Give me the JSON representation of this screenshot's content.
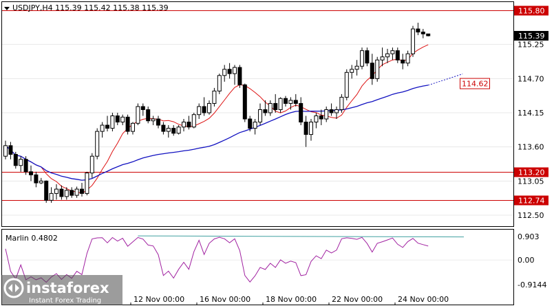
{
  "header": {
    "symbol_text": "USDJPY,H4  115.39 115.42 115.38 115.39"
  },
  "indicator": {
    "label": "Marlin 0.4802",
    "ticks": [
      "0.903",
      "0.00",
      "-0.9144"
    ]
  },
  "logo": {
    "brand": "instaforex",
    "tagline": "Instant Forex Trading"
  },
  "colors": {
    "bull_candle": "#ffffff",
    "bear_candle": "#000000",
    "level_line": "#cc0000",
    "ma_fast": "#dd1111",
    "ma_slow": "#1010c0",
    "marlin_line": "#a020a0",
    "marlin_signal": "#40a0a0"
  },
  "chart_data": {
    "type": "candlestick",
    "symbol": "USDJPY",
    "timeframe": "H4",
    "price_ticks": [
      "115.80",
      "115.25",
      "114.70",
      "114.15",
      "113.60",
      "113.05",
      "112.50"
    ],
    "price_range": [
      112.3,
      116.0
    ],
    "x_labels": [
      "12 Nov 00:00",
      "16 Nov 00:00",
      "18 Nov 00:00",
      "22 Nov 00:00",
      "24 Nov 00:00"
    ],
    "levels": [
      {
        "label": "115.80",
        "value": 115.8
      },
      {
        "label": "113.20",
        "value": 113.2
      },
      {
        "label": "112.74",
        "value": 112.74
      }
    ],
    "current_price": {
      "label": "115.39",
      "value": 115.39
    },
    "forecast": {
      "label": "114.62",
      "value": 114.62
    },
    "candles": [
      [
        113.45,
        113.7,
        113.4,
        113.62
      ],
      [
        113.62,
        113.68,
        113.4,
        113.48
      ],
      [
        113.48,
        113.52,
        113.25,
        113.3
      ],
      [
        113.3,
        113.45,
        113.2,
        113.4
      ],
      [
        113.4,
        113.45,
        113.15,
        113.2
      ],
      [
        113.2,
        113.3,
        113.05,
        113.15
      ],
      [
        113.15,
        113.2,
        112.95,
        113.02
      ],
      [
        113.02,
        113.1,
        113.0,
        113.05
      ],
      [
        113.05,
        113.06,
        112.7,
        112.74
      ],
      [
        112.74,
        112.95,
        112.7,
        112.85
      ],
      [
        112.85,
        113.0,
        112.75,
        112.92
      ],
      [
        112.92,
        112.98,
        112.75,
        112.8
      ],
      [
        112.8,
        112.95,
        112.75,
        112.9
      ],
      [
        112.9,
        112.95,
        112.78,
        112.82
      ],
      [
        112.82,
        112.96,
        112.78,
        112.92
      ],
      [
        112.92,
        113.02,
        112.8,
        112.85
      ],
      [
        112.85,
        113.2,
        112.82,
        113.18
      ],
      [
        113.18,
        113.5,
        113.1,
        113.45
      ],
      [
        113.45,
        113.9,
        113.4,
        113.85
      ],
      [
        113.85,
        114.0,
        113.75,
        113.95
      ],
      [
        113.95,
        114.1,
        113.85,
        113.9
      ],
      [
        113.9,
        114.15,
        113.85,
        114.1
      ],
      [
        114.1,
        114.15,
        113.95,
        114.0
      ],
      [
        114.0,
        114.12,
        113.95,
        114.08
      ],
      [
        114.08,
        114.12,
        113.8,
        113.85
      ],
      [
        113.85,
        114.0,
        113.8,
        113.98
      ],
      [
        113.98,
        114.3,
        113.95,
        114.25
      ],
      [
        114.25,
        114.3,
        114.1,
        114.2
      ],
      [
        114.2,
        114.25,
        113.98,
        114.02
      ],
      [
        114.02,
        114.1,
        113.95,
        114.05
      ],
      [
        114.05,
        114.1,
        113.9,
        113.95
      ],
      [
        113.95,
        114.0,
        113.8,
        113.85
      ],
      [
        113.85,
        113.95,
        113.75,
        113.9
      ],
      [
        113.9,
        113.95,
        113.78,
        113.82
      ],
      [
        113.82,
        113.95,
        113.8,
        113.92
      ],
      [
        113.92,
        114.05,
        113.85,
        114.0
      ],
      [
        114.0,
        114.1,
        113.88,
        113.92
      ],
      [
        113.92,
        114.15,
        113.9,
        114.12
      ],
      [
        114.12,
        114.3,
        114.05,
        114.25
      ],
      [
        114.25,
        114.4,
        114.1,
        114.15
      ],
      [
        114.15,
        114.35,
        114.12,
        114.3
      ],
      [
        114.3,
        114.55,
        114.25,
        114.5
      ],
      [
        114.5,
        114.78,
        114.45,
        114.75
      ],
      [
        114.75,
        114.92,
        114.65,
        114.85
      ],
      [
        114.85,
        114.95,
        114.7,
        114.78
      ],
      [
        114.78,
        114.92,
        114.6,
        114.88
      ],
      [
        114.88,
        114.92,
        114.55,
        114.6
      ],
      [
        114.6,
        114.62,
        114.0,
        114.05
      ],
      [
        114.05,
        114.1,
        113.85,
        113.9
      ],
      [
        113.9,
        114.05,
        113.8,
        114.0
      ],
      [
        114.0,
        114.3,
        113.95,
        114.2
      ],
      [
        114.2,
        114.35,
        114.1,
        114.15
      ],
      [
        114.15,
        114.35,
        114.1,
        114.3
      ],
      [
        114.3,
        114.45,
        114.15,
        114.2
      ],
      [
        114.2,
        114.4,
        114.15,
        114.38
      ],
      [
        114.38,
        114.42,
        114.25,
        114.3
      ],
      [
        114.3,
        114.4,
        114.2,
        114.35
      ],
      [
        114.35,
        114.45,
        114.25,
        114.3
      ],
      [
        114.3,
        114.4,
        113.95,
        114.0
      ],
      [
        114.0,
        114.1,
        113.6,
        113.8
      ],
      [
        113.8,
        114.05,
        113.7,
        114.0
      ],
      [
        114.0,
        114.15,
        113.9,
        114.1
      ],
      [
        114.1,
        114.2,
        113.95,
        114.05
      ],
      [
        114.05,
        114.25,
        114.0,
        114.2
      ],
      [
        114.2,
        114.3,
        114.1,
        114.15
      ],
      [
        114.15,
        114.25,
        114.05,
        114.2
      ],
      [
        114.2,
        114.45,
        114.15,
        114.4
      ],
      [
        114.4,
        114.85,
        114.35,
        114.8
      ],
      [
        114.8,
        114.92,
        114.7,
        114.85
      ],
      [
        114.85,
        115.0,
        114.75,
        114.9
      ],
      [
        114.9,
        115.2,
        114.85,
        115.15
      ],
      [
        115.15,
        115.2,
        114.9,
        114.95
      ],
      [
        114.95,
        115.1,
        114.6,
        114.7
      ],
      [
        114.7,
        115.05,
        114.65,
        115.0
      ],
      [
        115.0,
        115.2,
        114.9,
        115.05
      ],
      [
        115.05,
        115.18,
        114.95,
        115.1
      ],
      [
        115.1,
        115.2,
        115.0,
        115.15
      ],
      [
        115.15,
        115.2,
        114.95,
        115.0
      ],
      [
        115.0,
        115.1,
        114.85,
        114.95
      ],
      [
        114.95,
        115.15,
        114.9,
        115.1
      ],
      [
        115.1,
        115.55,
        115.05,
        115.5
      ],
      [
        115.5,
        115.6,
        115.4,
        115.45
      ],
      [
        115.45,
        115.5,
        115.35,
        115.42
      ],
      [
        115.42,
        115.42,
        115.38,
        115.39
      ]
    ]
  }
}
